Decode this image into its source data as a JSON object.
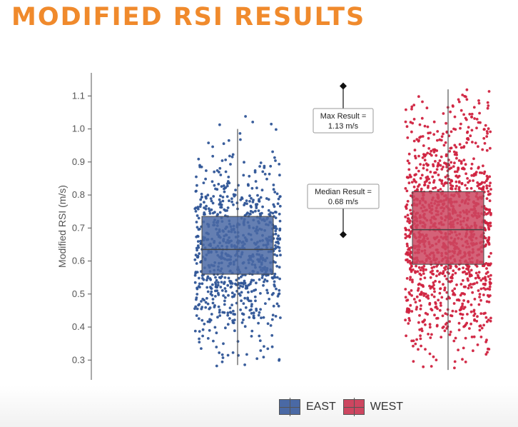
{
  "page": {
    "title": "MODIFIED RSI RESULTS"
  },
  "chart_data": {
    "type": "boxplot-jitter",
    "title": "MODIFIED RSI RESULTS",
    "xlabel": "",
    "ylabel": "Modified RSI (m/s)",
    "ylim": [
      0.24,
      1.17
    ],
    "yticks": [
      0.3,
      0.4,
      0.5,
      0.6,
      0.7,
      0.8,
      0.9,
      1.0,
      1.1
    ],
    "ytick_labels": [
      "0.3",
      "0.4",
      "0.5",
      "0.6",
      "0.7",
      "0.8",
      "0.9",
      "1.0",
      "1.1"
    ],
    "grid": false,
    "legend_position": "bottom",
    "series": [
      {
        "name": "EAST",
        "color": "#2f5597",
        "box_color": "#4a69a5",
        "min": 0.285,
        "q1": 0.56,
        "median": 0.635,
        "q3": 0.735,
        "max": 1.0,
        "point_count": 850,
        "point_min": 0.28,
        "point_max": 1.05
      },
      {
        "name": "WEST",
        "color": "#d0223f",
        "box_color": "#cd4660",
        "min": 0.27,
        "q1": 0.59,
        "median": 0.695,
        "q3": 0.81,
        "max": 1.12,
        "point_count": 1350,
        "point_min": 0.27,
        "point_max": 1.12
      }
    ],
    "annotations": [
      {
        "label_line1": "Max Result =",
        "label_line2": "1.13 m/s",
        "value": 1.13
      },
      {
        "label_line1": "Median Result =",
        "label_line2": "0.68 m/s",
        "value": 0.68
      }
    ]
  },
  "legend": {
    "items": [
      {
        "label": "EAST"
      },
      {
        "label": "WEST"
      }
    ]
  },
  "colors": {
    "title": "#f08a2c",
    "east": "#2f5597",
    "west": "#d0223f"
  }
}
